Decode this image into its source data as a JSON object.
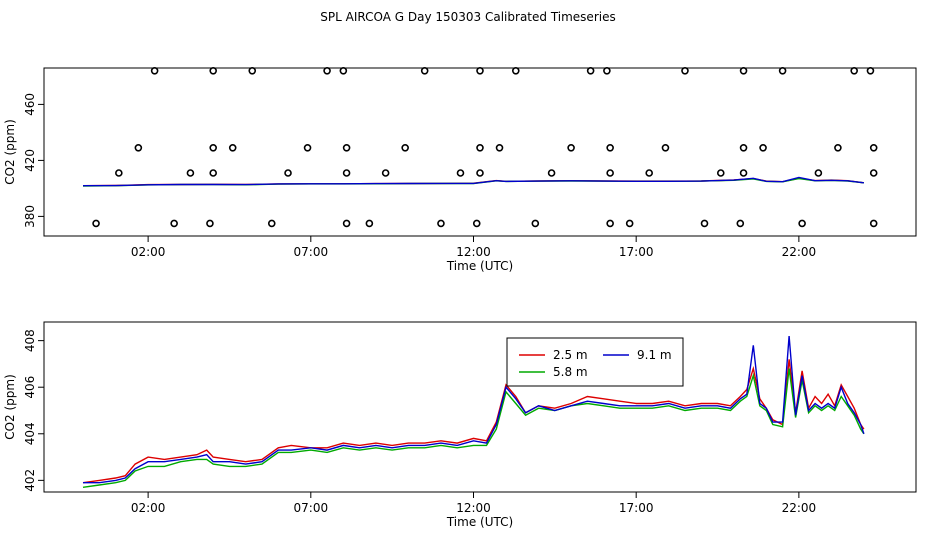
{
  "figure_title": "SPL AIRCOA G  Day 150303  Calibrated Timeseries",
  "chart_data": [
    {
      "type": "scatter",
      "title": "SPL AIRCOA G  Day 150303  Calibrated Timeseries",
      "xlabel": "Time (UTC)",
      "ylabel": "CO2 (ppm)",
      "x_unit": "hours UTC",
      "xlim": [
        -1.2,
        25.6
      ],
      "ylim": [
        366,
        486
      ],
      "x_ticks": [
        {
          "value": 2,
          "label": "02:00"
        },
        {
          "value": 7,
          "label": "07:00"
        },
        {
          "value": 12,
          "label": "12:00"
        },
        {
          "value": 17,
          "label": "17:00"
        },
        {
          "value": 22,
          "label": "22:00"
        }
      ],
      "y_ticks": [
        {
          "value": 380,
          "label": "380"
        },
        {
          "value": 420,
          "label": "420"
        },
        {
          "value": 460,
          "label": "460"
        }
      ],
      "series_colors": [
        "#dd0000",
        "#00aa00",
        "#0000cc"
      ],
      "lines": [
        {
          "x": [
            0.0,
            1.0,
            2.0,
            3.0,
            4.0,
            5.0,
            6.0,
            7.0,
            8.0,
            9.0,
            10.0,
            11.0,
            12.0,
            12.7,
            13.0,
            14.0,
            15.0,
            16.0,
            17.0,
            18.0,
            19.0,
            20.0,
            20.6,
            21.0,
            21.5,
            22.0,
            22.5,
            23.0,
            23.5,
            24.0
          ],
          "y": [
            401.9,
            402.1,
            402.7,
            402.8,
            402.9,
            402.8,
            403.2,
            403.3,
            403.3,
            403.4,
            403.5,
            403.6,
            403.7,
            405.6,
            405.1,
            405.3,
            405.5,
            405.3,
            405.2,
            405.2,
            405.3,
            406.0,
            407.0,
            405.2,
            404.8,
            407.2,
            405.6,
            405.9,
            405.5,
            404.0
          ]
        },
        {
          "x": [
            0.0,
            1.0,
            2.0,
            3.0,
            4.0,
            5.0,
            6.0,
            7.0,
            8.0,
            9.0,
            10.0,
            11.0,
            12.0,
            12.7,
            13.0,
            14.0,
            15.0,
            16.0,
            17.0,
            18.0,
            19.0,
            20.0,
            20.6,
            21.0,
            21.5,
            22.0,
            22.5,
            23.0,
            23.5,
            24.0
          ],
          "y": [
            401.7,
            401.9,
            402.5,
            402.7,
            402.7,
            402.6,
            403.1,
            403.2,
            403.2,
            403.3,
            403.4,
            403.5,
            403.5,
            405.4,
            405.0,
            405.2,
            405.3,
            405.2,
            405.1,
            405.1,
            405.2,
            405.8,
            406.8,
            405.0,
            404.7,
            407.0,
            405.4,
            405.7,
            405.3,
            404.0
          ]
        },
        {
          "x": [
            0.0,
            1.0,
            2.0,
            3.0,
            4.0,
            5.0,
            6.0,
            7.0,
            8.0,
            9.0,
            10.0,
            11.0,
            12.0,
            12.7,
            13.0,
            14.0,
            15.0,
            16.0,
            17.0,
            18.0,
            19.0,
            20.0,
            20.6,
            21.0,
            21.5,
            22.0,
            22.5,
            23.0,
            23.5,
            24.0
          ],
          "y": [
            401.9,
            402.0,
            402.6,
            402.8,
            402.8,
            402.7,
            403.2,
            403.3,
            403.3,
            403.4,
            403.5,
            403.6,
            403.6,
            405.5,
            405.0,
            405.2,
            405.4,
            405.2,
            405.1,
            405.1,
            405.2,
            405.9,
            407.2,
            405.1,
            404.8,
            407.8,
            405.5,
            405.8,
            405.4,
            404.0
          ]
        }
      ],
      "points": [
        {
          "x": 0.4,
          "y": 375
        },
        {
          "x": 1.1,
          "y": 411
        },
        {
          "x": 1.7,
          "y": 429
        },
        {
          "x": 2.2,
          "y": 484
        },
        {
          "x": 2.8,
          "y": 375
        },
        {
          "x": 3.3,
          "y": 411
        },
        {
          "x": 3.9,
          "y": 375
        },
        {
          "x": 4.0,
          "y": 411
        },
        {
          "x": 4.0,
          "y": 429
        },
        {
          "x": 4.0,
          "y": 484
        },
        {
          "x": 4.6,
          "y": 429
        },
        {
          "x": 5.2,
          "y": 484
        },
        {
          "x": 5.8,
          "y": 375
        },
        {
          "x": 6.3,
          "y": 411
        },
        {
          "x": 6.9,
          "y": 429
        },
        {
          "x": 7.5,
          "y": 484
        },
        {
          "x": 8.0,
          "y": 484
        },
        {
          "x": 8.1,
          "y": 429
        },
        {
          "x": 8.1,
          "y": 411
        },
        {
          "x": 8.1,
          "y": 375
        },
        {
          "x": 8.8,
          "y": 375
        },
        {
          "x": 9.3,
          "y": 411
        },
        {
          "x": 9.9,
          "y": 429
        },
        {
          "x": 10.5,
          "y": 484
        },
        {
          "x": 11.0,
          "y": 375
        },
        {
          "x": 11.6,
          "y": 411
        },
        {
          "x": 12.1,
          "y": 375
        },
        {
          "x": 12.2,
          "y": 411
        },
        {
          "x": 12.2,
          "y": 429
        },
        {
          "x": 12.2,
          "y": 484
        },
        {
          "x": 12.8,
          "y": 429
        },
        {
          "x": 13.3,
          "y": 484
        },
        {
          "x": 13.9,
          "y": 375
        },
        {
          "x": 14.4,
          "y": 411
        },
        {
          "x": 15.0,
          "y": 429
        },
        {
          "x": 15.6,
          "y": 484
        },
        {
          "x": 16.1,
          "y": 484
        },
        {
          "x": 16.2,
          "y": 429
        },
        {
          "x": 16.2,
          "y": 411
        },
        {
          "x": 16.2,
          "y": 375
        },
        {
          "x": 16.8,
          "y": 375
        },
        {
          "x": 17.4,
          "y": 411
        },
        {
          "x": 17.9,
          "y": 429
        },
        {
          "x": 18.5,
          "y": 484
        },
        {
          "x": 19.1,
          "y": 375
        },
        {
          "x": 19.6,
          "y": 411
        },
        {
          "x": 20.2,
          "y": 375
        },
        {
          "x": 20.3,
          "y": 411
        },
        {
          "x": 20.3,
          "y": 429
        },
        {
          "x": 20.3,
          "y": 484
        },
        {
          "x": 20.9,
          "y": 429
        },
        {
          "x": 21.5,
          "y": 484
        },
        {
          "x": 22.1,
          "y": 375
        },
        {
          "x": 22.6,
          "y": 411
        },
        {
          "x": 23.2,
          "y": 429
        },
        {
          "x": 23.7,
          "y": 484
        },
        {
          "x": 24.2,
          "y": 484
        },
        {
          "x": 24.3,
          "y": 429
        },
        {
          "x": 24.3,
          "y": 411
        },
        {
          "x": 24.3,
          "y": 375
        }
      ]
    },
    {
      "type": "line",
      "xlabel": "Time (UTC)",
      "ylabel": "CO2 (ppm)",
      "x_unit": "hours UTC",
      "xlim": [
        -1.2,
        25.6
      ],
      "ylim": [
        401.5,
        408.8
      ],
      "x_ticks": [
        {
          "value": 2,
          "label": "02:00"
        },
        {
          "value": 7,
          "label": "07:00"
        },
        {
          "value": 12,
          "label": "12:00"
        },
        {
          "value": 17,
          "label": "17:00"
        },
        {
          "value": 22,
          "label": "22:00"
        }
      ],
      "y_ticks": [
        {
          "value": 402,
          "label": "402"
        },
        {
          "value": 404,
          "label": "404"
        },
        {
          "value": 406,
          "label": "406"
        },
        {
          "value": 408,
          "label": "408"
        }
      ],
      "legend": {
        "placement": "top-center",
        "entries": [
          {
            "label": "2.5 m",
            "color": "#dd0000"
          },
          {
            "label": "9.1 m",
            "color": "#0000cc"
          },
          {
            "label": "5.8 m",
            "color": "#00aa00"
          }
        ]
      },
      "series": [
        {
          "name": "2.5 m",
          "color": "#dd0000",
          "x": [
            0.0,
            0.5,
            1.0,
            1.3,
            1.6,
            2.0,
            2.5,
            3.0,
            3.5,
            3.8,
            4.0,
            4.5,
            5.0,
            5.5,
            6.0,
            6.4,
            7.0,
            7.5,
            8.0,
            8.5,
            9.0,
            9.5,
            10.0,
            10.5,
            11.0,
            11.5,
            12.0,
            12.4,
            12.7,
            13.0,
            13.3,
            13.6,
            14.0,
            14.5,
            15.0,
            15.5,
            16.0,
            16.5,
            17.0,
            17.5,
            18.0,
            18.5,
            19.0,
            19.5,
            19.9,
            20.2,
            20.4,
            20.6,
            20.8,
            21.0,
            21.2,
            21.5,
            21.7,
            21.9,
            22.1,
            22.3,
            22.5,
            22.7,
            22.9,
            23.1,
            23.3,
            23.5,
            23.7,
            23.9,
            24.0
          ],
          "y": [
            401.9,
            402.0,
            402.1,
            402.2,
            402.7,
            403.0,
            402.9,
            403.0,
            403.1,
            403.3,
            403.0,
            402.9,
            402.8,
            402.9,
            403.4,
            403.5,
            403.4,
            403.4,
            403.6,
            403.5,
            403.6,
            403.5,
            403.6,
            403.6,
            403.7,
            403.6,
            403.8,
            403.7,
            404.5,
            406.1,
            405.6,
            404.9,
            405.2,
            405.1,
            405.3,
            405.6,
            405.5,
            405.4,
            405.3,
            405.3,
            405.4,
            405.2,
            405.3,
            405.3,
            405.2,
            405.6,
            405.9,
            406.8,
            405.5,
            405.1,
            404.6,
            404.4,
            407.2,
            404.9,
            406.7,
            405.1,
            405.6,
            405.3,
            405.7,
            405.2,
            406.1,
            405.6,
            405.1,
            404.4,
            404.2
          ]
        },
        {
          "name": "5.8 m",
          "color": "#00aa00",
          "x": [
            0.0,
            0.5,
            1.0,
            1.3,
            1.6,
            2.0,
            2.5,
            3.0,
            3.5,
            3.8,
            4.0,
            4.5,
            5.0,
            5.5,
            6.0,
            6.4,
            7.0,
            7.5,
            8.0,
            8.5,
            9.0,
            9.5,
            10.0,
            10.5,
            11.0,
            11.5,
            12.0,
            12.4,
            12.7,
            13.0,
            13.3,
            13.6,
            14.0,
            14.5,
            15.0,
            15.5,
            16.0,
            16.5,
            17.0,
            17.5,
            18.0,
            18.5,
            19.0,
            19.5,
            19.9,
            20.2,
            20.4,
            20.6,
            20.8,
            21.0,
            21.2,
            21.5,
            21.7,
            21.9,
            22.1,
            22.3,
            22.5,
            22.7,
            22.9,
            23.1,
            23.3,
            23.5,
            23.7,
            23.9,
            24.0
          ],
          "y": [
            401.7,
            401.8,
            401.9,
            402.0,
            402.4,
            402.6,
            402.6,
            402.8,
            402.9,
            402.9,
            402.7,
            402.6,
            402.6,
            402.7,
            403.2,
            403.2,
            403.3,
            403.2,
            403.4,
            403.3,
            403.4,
            403.3,
            403.4,
            403.4,
            403.5,
            403.4,
            403.5,
            403.5,
            404.2,
            405.8,
            405.3,
            404.8,
            405.1,
            405.0,
            405.2,
            405.3,
            405.2,
            405.1,
            405.1,
            405.1,
            405.2,
            405.0,
            405.1,
            405.1,
            405.0,
            405.4,
            405.6,
            406.5,
            405.2,
            405.0,
            404.4,
            404.3,
            406.8,
            404.7,
            406.3,
            404.9,
            405.2,
            405.0,
            405.2,
            405.0,
            405.6,
            405.2,
            404.8,
            404.2,
            404.0
          ]
        },
        {
          "name": "9.1 m",
          "color": "#0000cc",
          "x": [
            0.0,
            0.5,
            1.0,
            1.3,
            1.6,
            2.0,
            2.5,
            3.0,
            3.5,
            3.8,
            4.0,
            4.5,
            5.0,
            5.5,
            6.0,
            6.4,
            7.0,
            7.5,
            8.0,
            8.5,
            9.0,
            9.5,
            10.0,
            10.5,
            11.0,
            11.5,
            12.0,
            12.4,
            12.7,
            13.0,
            13.3,
            13.6,
            14.0,
            14.5,
            15.0,
            15.5,
            16.0,
            16.5,
            17.0,
            17.5,
            18.0,
            18.5,
            19.0,
            19.5,
            19.9,
            20.2,
            20.4,
            20.6,
            20.8,
            21.0,
            21.2,
            21.5,
            21.7,
            21.9,
            22.1,
            22.3,
            22.5,
            22.7,
            22.9,
            23.1,
            23.3,
            23.5,
            23.7,
            23.9,
            24.0
          ],
          "y": [
            401.9,
            401.9,
            402.0,
            402.1,
            402.5,
            402.8,
            402.8,
            402.9,
            403.0,
            403.1,
            402.8,
            402.8,
            402.7,
            402.8,
            403.3,
            403.3,
            403.4,
            403.3,
            403.5,
            403.4,
            403.5,
            403.4,
            403.5,
            403.5,
            403.6,
            403.5,
            403.7,
            403.6,
            404.4,
            406.0,
            405.5,
            404.9,
            405.2,
            405.0,
            405.2,
            405.4,
            405.3,
            405.2,
            405.2,
            405.2,
            405.3,
            405.1,
            405.2,
            405.2,
            405.1,
            405.5,
            405.7,
            407.8,
            405.3,
            405.1,
            404.5,
            404.5,
            408.2,
            404.8,
            406.5,
            405.0,
            405.3,
            405.1,
            405.3,
            405.1,
            406.0,
            405.3,
            404.9,
            404.4,
            404.0
          ]
        }
      ]
    }
  ]
}
